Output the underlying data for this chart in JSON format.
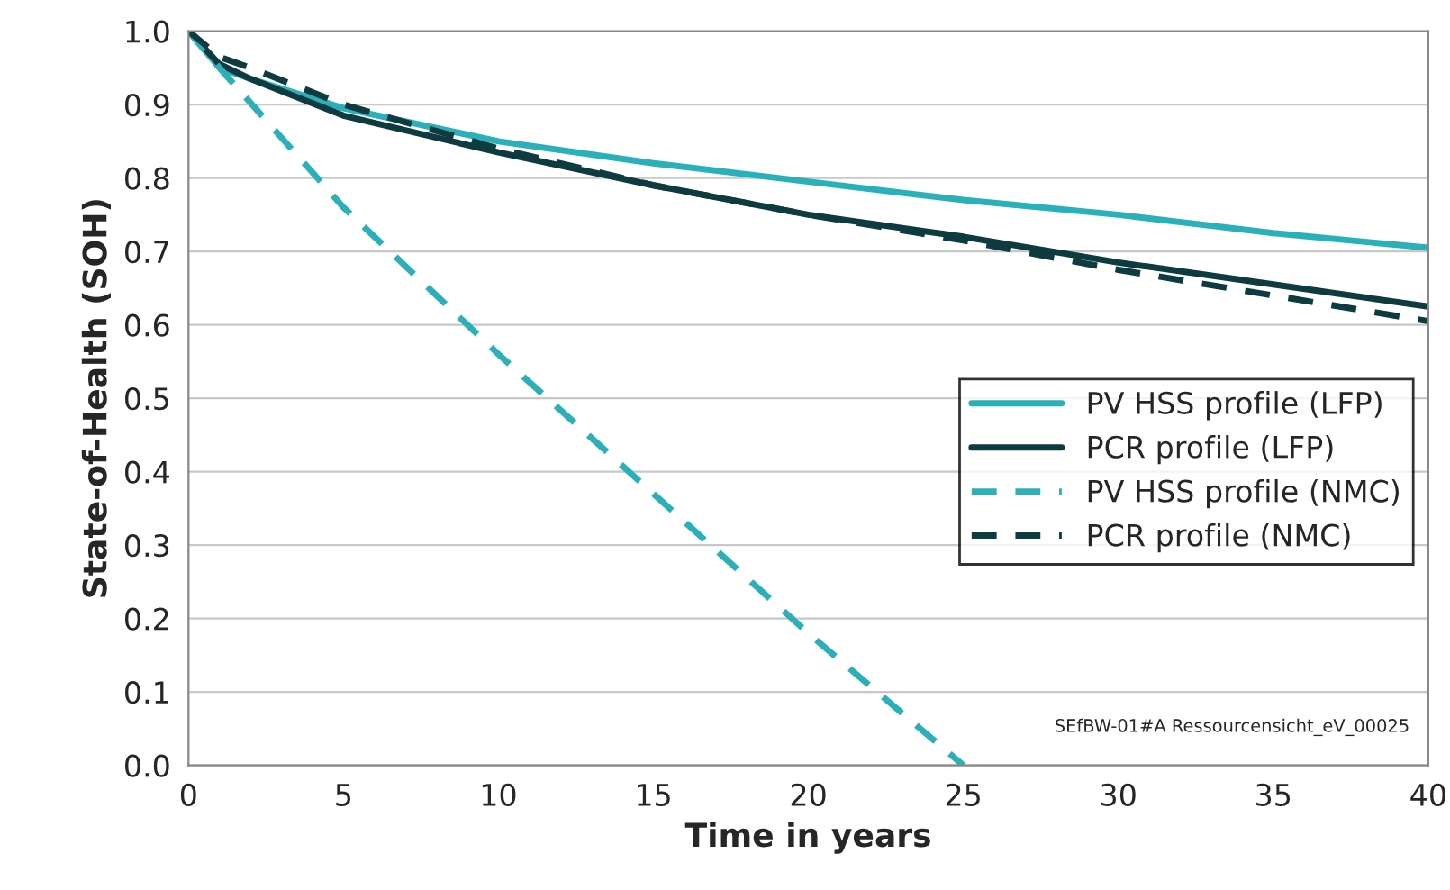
{
  "chart_data": {
    "type": "line",
    "xlabel": "Time in years",
    "ylabel": "State-of-Health (SOH)",
    "xlim": [
      0,
      40
    ],
    "xticks": [
      0,
      5,
      10,
      15,
      20,
      25,
      30,
      35,
      40
    ],
    "ylim": [
      0,
      1
    ],
    "yticks": [
      {
        "value": 0,
        "label": "0.0"
      },
      {
        "value": 0.1,
        "label": "0.1"
      },
      {
        "value": 0.2,
        "label": "0.2"
      },
      {
        "value": 0.3,
        "label": "0.3"
      },
      {
        "value": 0.4,
        "label": "0.4"
      },
      {
        "value": 0.5,
        "label": "0.5"
      },
      {
        "value": 0.6,
        "label": "0.6"
      },
      {
        "value": 0.7,
        "label": "0.7"
      },
      {
        "value": 0.8,
        "label": "0.8"
      },
      {
        "value": 0.9,
        "label": "0.9"
      },
      {
        "value": 1,
        "label": "1.0"
      }
    ],
    "grid": "y",
    "legend": "right",
    "marker": "none",
    "series": [
      {
        "name": "PV HSS profile (LFP)",
        "color": "#2ab0b8",
        "line_style": "solid",
        "x": [
          0,
          1,
          2,
          5,
          10,
          15,
          20,
          25,
          30,
          35,
          40
        ],
        "values": [
          1.0,
          0.95,
          0.935,
          0.895,
          0.85,
          0.82,
          0.795,
          0.77,
          0.75,
          0.725,
          0.705
        ]
      },
      {
        "name": "PCR profile (LFP)",
        "color": "#0d3b40",
        "line_style": "solid",
        "x": [
          0,
          1,
          2,
          5,
          10,
          15,
          20,
          25,
          30,
          35,
          40
        ],
        "values": [
          1.0,
          0.955,
          0.935,
          0.885,
          0.835,
          0.79,
          0.75,
          0.72,
          0.685,
          0.655,
          0.625
        ]
      },
      {
        "name": "PV HSS profile (NMC)",
        "color": "#2ab0b8",
        "line_style": "dashed",
        "x": [
          0,
          1,
          5,
          10,
          15,
          20,
          25
        ],
        "values": [
          1.0,
          0.95,
          0.76,
          0.56,
          0.37,
          0.18,
          0.0
        ]
      },
      {
        "name": "PCR profile (NMC)",
        "color": "#0d3b40",
        "line_style": "dashed",
        "x": [
          0,
          1,
          2,
          5,
          10,
          15,
          20,
          25,
          30,
          35,
          40
        ],
        "values": [
          1.0,
          0.965,
          0.95,
          0.9,
          0.84,
          0.79,
          0.75,
          0.715,
          0.675,
          0.64,
          0.605
        ]
      }
    ],
    "annotations": [
      "SEfBW-01#A Ressourcensicht_eV_00025"
    ]
  }
}
